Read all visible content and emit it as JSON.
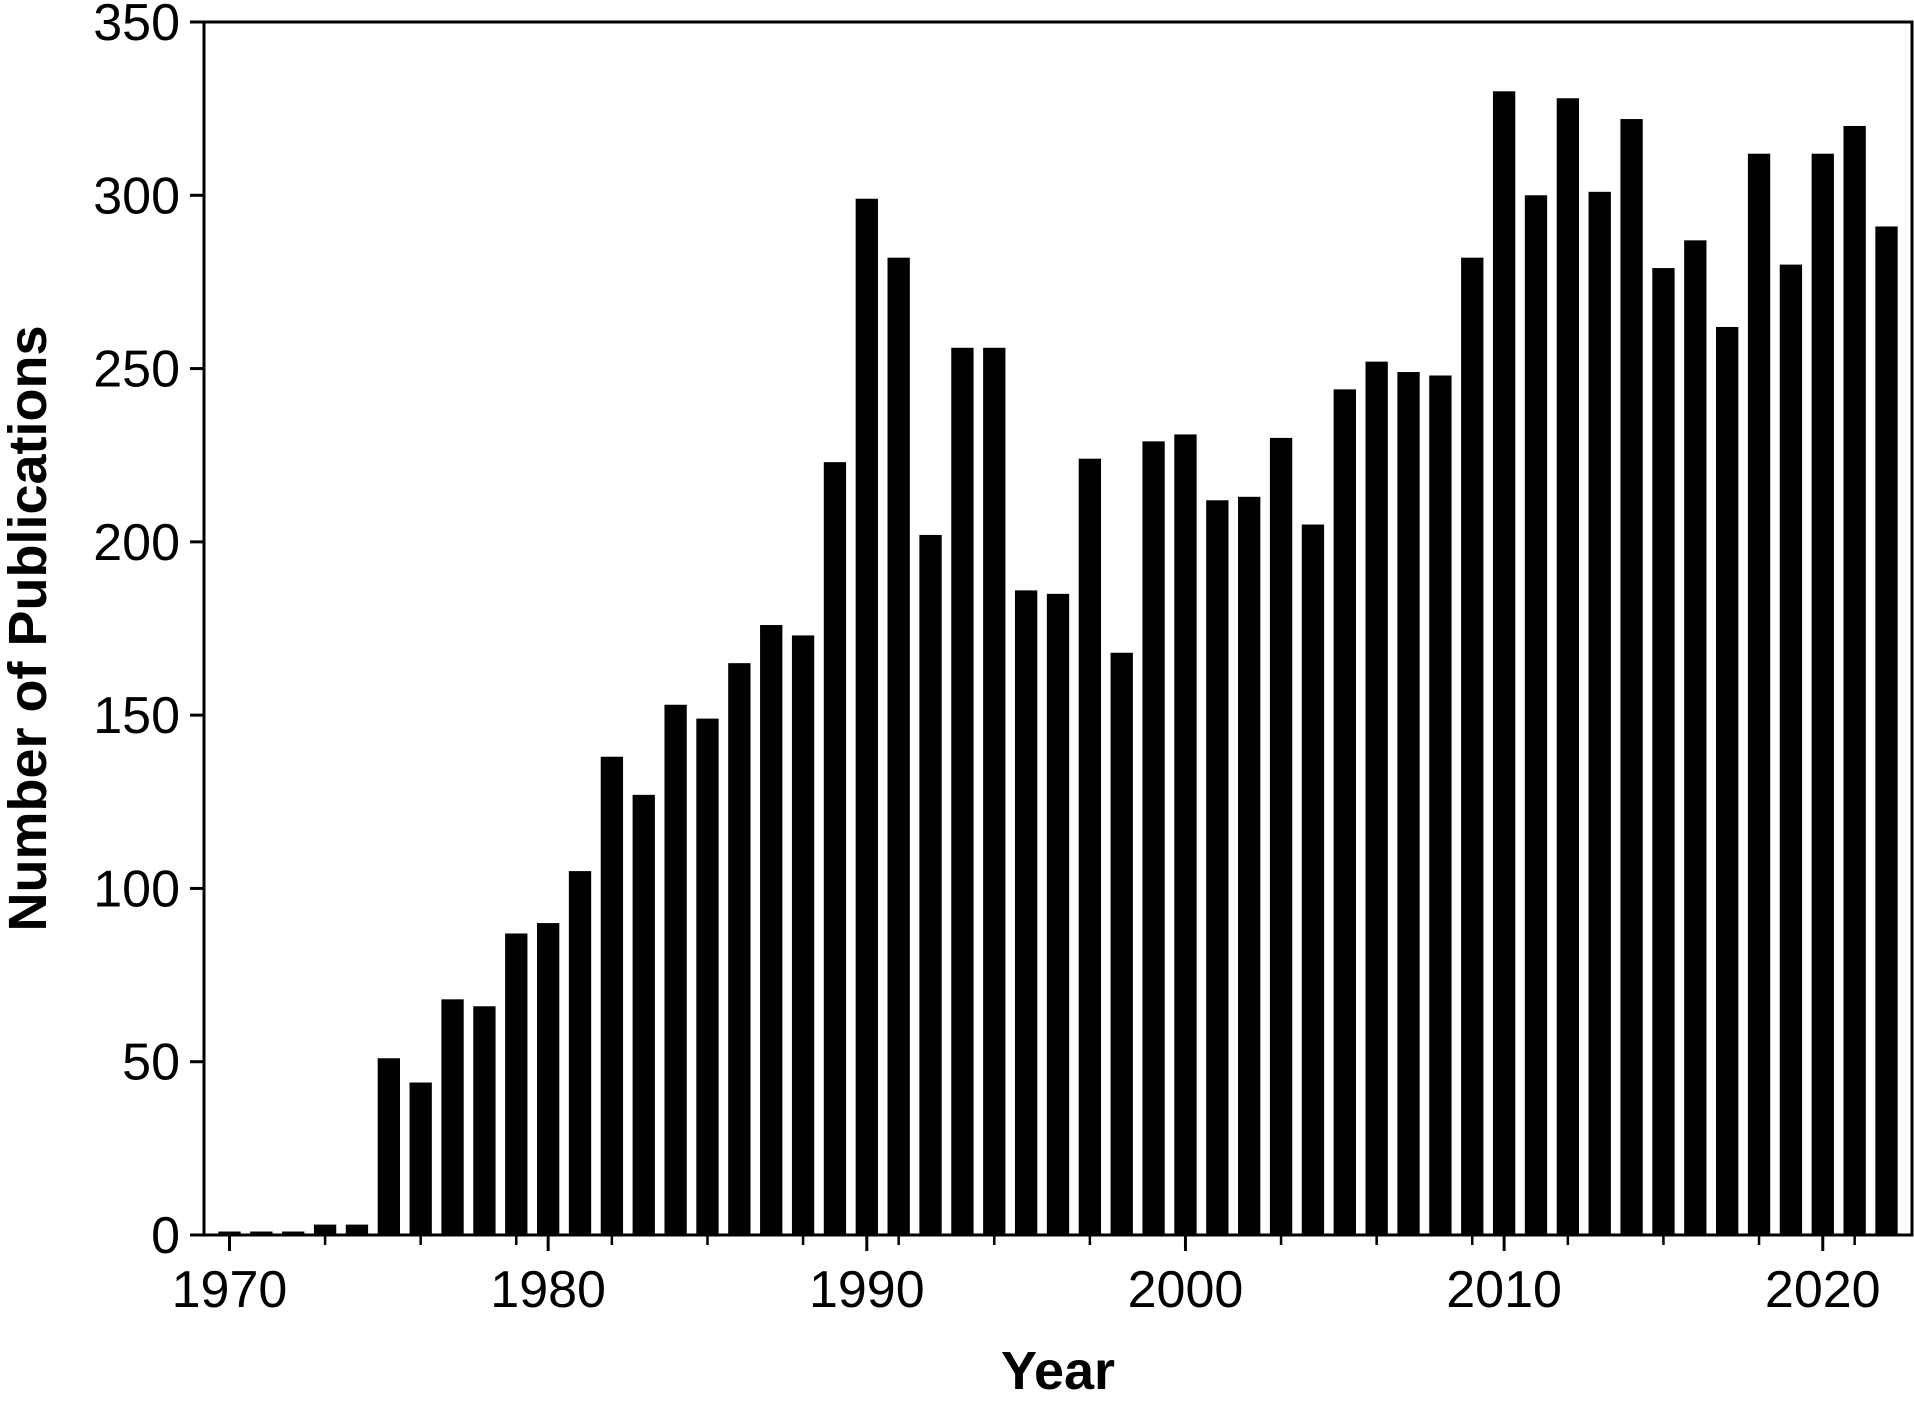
{
  "chart_data": {
    "type": "bar",
    "title": "",
    "xlabel": "Year",
    "ylabel": "Number of Publications",
    "ylim": [
      0,
      350
    ],
    "xlim": [
      1969.2,
      2022.8
    ],
    "y_ticks": [
      0,
      50,
      100,
      150,
      200,
      250,
      300,
      350
    ],
    "x_major_ticks": [
      1970,
      1980,
      1990,
      2000,
      2010,
      2020
    ],
    "x_minor_tick_step": 3,
    "grid": false,
    "legend": "none",
    "bar_color": "#000000",
    "categories": [
      1970,
      1971,
      1972,
      1973,
      1974,
      1975,
      1976,
      1977,
      1978,
      1979,
      1980,
      1981,
      1982,
      1983,
      1984,
      1985,
      1986,
      1987,
      1988,
      1989,
      1990,
      1991,
      1992,
      1993,
      1994,
      1995,
      1996,
      1997,
      1998,
      1999,
      2000,
      2001,
      2002,
      2003,
      2004,
      2005,
      2006,
      2007,
      2008,
      2009,
      2010,
      2011,
      2012,
      2013,
      2014,
      2015,
      2016,
      2017,
      2018,
      2019,
      2020,
      2021,
      2022
    ],
    "values": [
      1,
      1,
      1,
      3,
      3,
      51,
      44,
      68,
      66,
      87,
      90,
      105,
      138,
      127,
      153,
      149,
      165,
      176,
      173,
      223,
      299,
      282,
      202,
      256,
      256,
      186,
      185,
      224,
      168,
      229,
      231,
      212,
      213,
      230,
      205,
      244,
      252,
      249,
      248,
      282,
      330,
      300,
      328,
      301,
      322,
      279,
      287,
      262,
      312,
      280,
      312,
      320,
      291
    ]
  }
}
